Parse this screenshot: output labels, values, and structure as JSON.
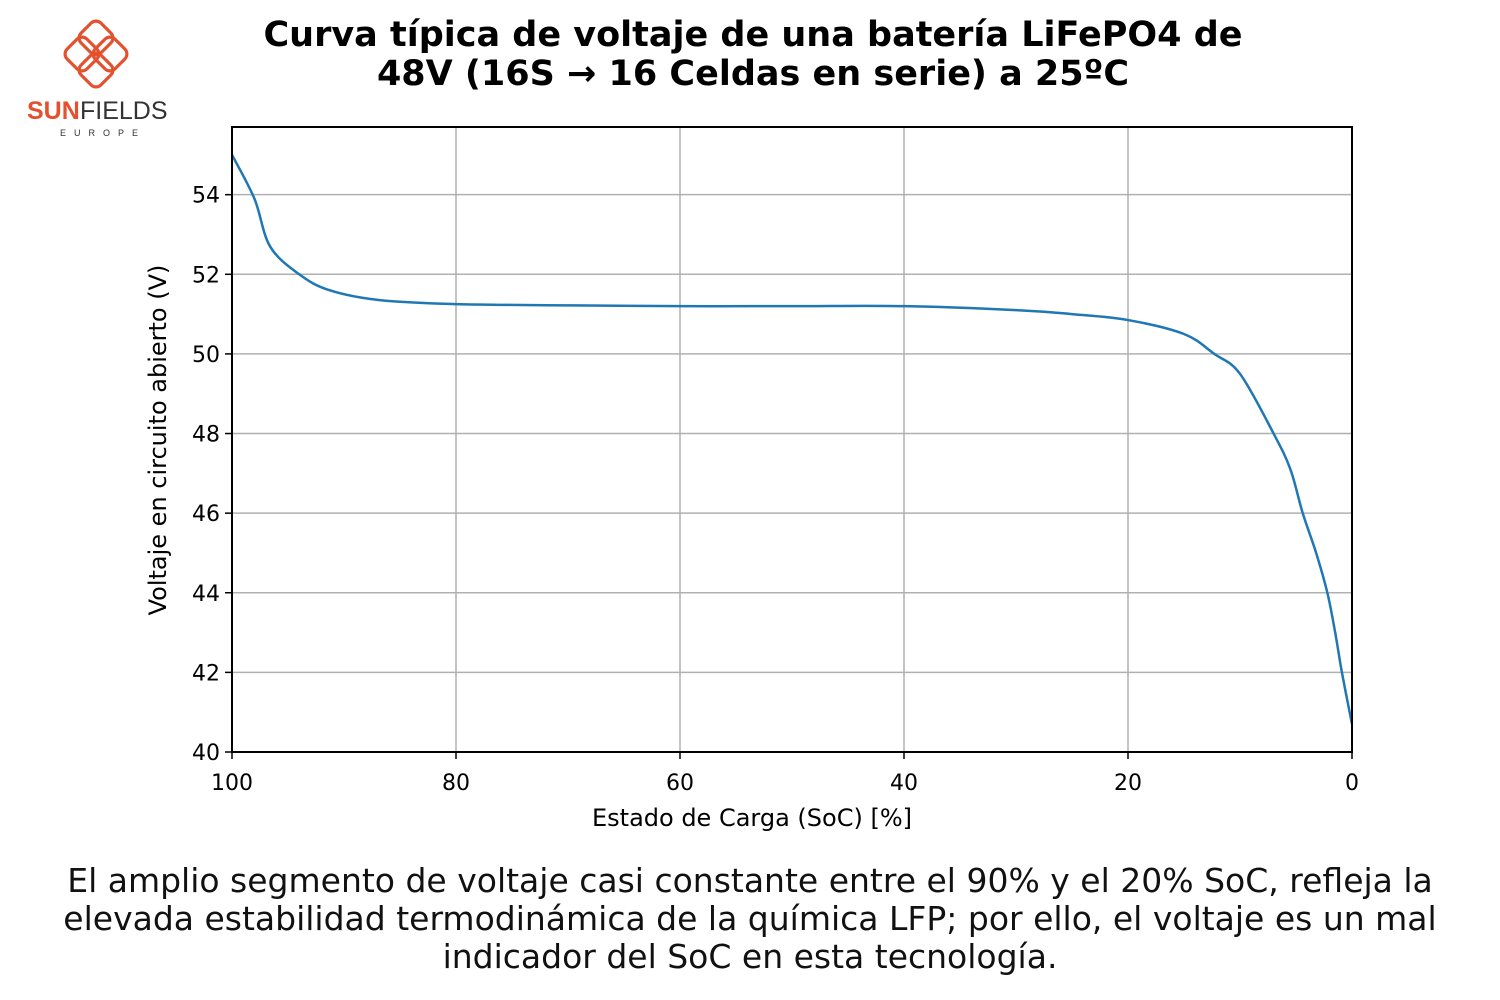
{
  "logo": {
    "brand_bold": "SUN",
    "brand_light": "FIELDS",
    "sub": "EUROPE",
    "color": "#e4512f"
  },
  "chart_data": {
    "type": "line",
    "title_line1": "Curva típica de voltaje de una batería LiFePO4 de",
    "title_line2": "48V (16S → 16 Celdas en serie) a 25ºC",
    "xlabel": "Estado de Carga (SoC) [%]",
    "ylabel": "Voltaje en circuito abierto (V)",
    "xlim": [
      100,
      0
    ],
    "ylim": [
      40,
      55.7
    ],
    "x_reversed": true,
    "xticks": [
      100,
      80,
      60,
      40,
      20,
      0
    ],
    "yticks": [
      40,
      42,
      44,
      46,
      48,
      50,
      52,
      54
    ],
    "grid": true,
    "line_color": "#1f77b4",
    "series": [
      {
        "x": [
          100,
          98,
          96.6,
          94,
          91.3,
          86.8,
          80,
          70,
          60,
          50,
          40,
          30,
          25,
          20,
          15,
          12.3,
          10,
          7,
          5.5,
          4.4,
          3.2,
          2.2,
          1.5,
          0.9,
          0
        ],
        "y": [
          55.0,
          53.9,
          52.7,
          52.0,
          51.6,
          51.35,
          51.25,
          51.22,
          51.2,
          51.2,
          51.2,
          51.1,
          51.0,
          50.85,
          50.5,
          50.0,
          49.5,
          48.0,
          47.1,
          46.0,
          45.0,
          44.0,
          43.0,
          42.0,
          40.7
        ]
      }
    ]
  },
  "caption": "El amplio segmento de voltaje casi constante entre el 90% y el 20% SoC, refleja la elevada estabilidad termodinámica de la química LFP; por ello, el voltaje es un mal indicador del SoC en esta tecnología."
}
